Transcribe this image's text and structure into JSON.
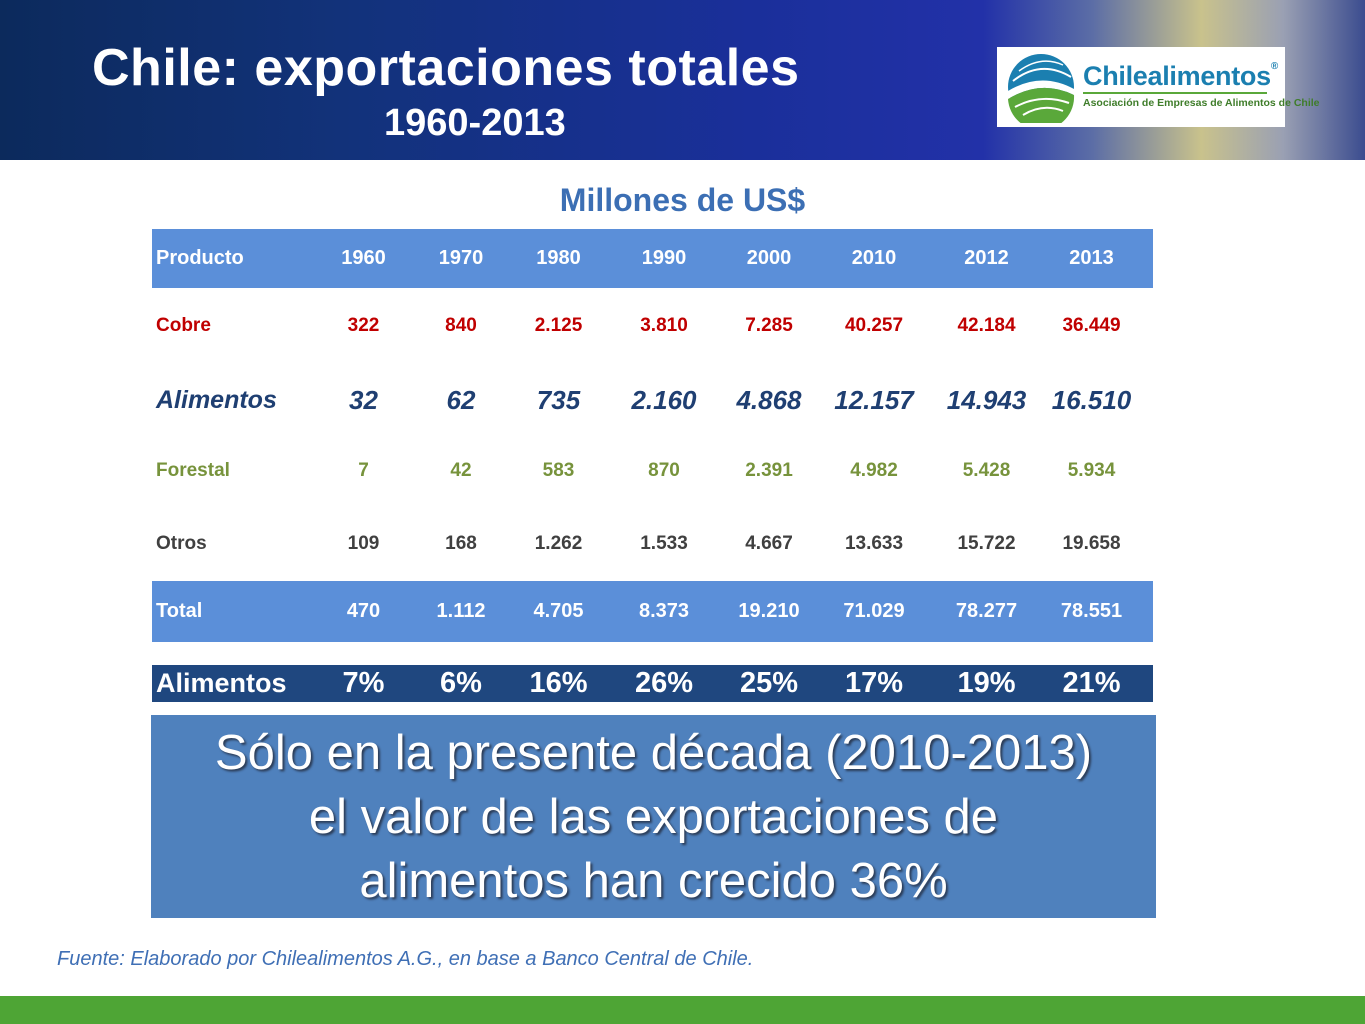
{
  "header": {
    "title": "Chile: exportaciones totales",
    "subtitle": "1960-2013"
  },
  "logo": {
    "name": "Chilealimentos",
    "registered": "®",
    "tagline": "Asociación de Empresas de Alimentos de Chile"
  },
  "units": "Millones de US$",
  "table": {
    "header": [
      "Producto",
      "1960",
      "1970",
      "1980",
      "1990",
      "2000",
      "2010",
      "2012",
      "2013"
    ],
    "cobre": [
      "Cobre",
      "322",
      "840",
      "2.125",
      "3.810",
      "7.285",
      "40.257",
      "42.184",
      "36.449"
    ],
    "alimentos": [
      "Alimentos",
      "32",
      "62",
      "735",
      "2.160",
      "4.868",
      "12.157",
      "14.943",
      "16.510"
    ],
    "forestal": [
      "Forestal",
      "7",
      "42",
      "583",
      "870",
      "2.391",
      "4.982",
      "5.428",
      "5.934"
    ],
    "otros": [
      "Otros",
      "109",
      "168",
      "1.262",
      "1.533",
      "4.667",
      "13.633",
      "15.722",
      "19.658"
    ],
    "total": [
      "Total",
      "470",
      "1.112",
      "4.705",
      "8.373",
      "19.210",
      "71.029",
      "78.277",
      "78.551"
    ],
    "share": [
      "Alimentos",
      "7%",
      "6%",
      "16%",
      "26%",
      "25%",
      "17%",
      "19%",
      "21%"
    ]
  },
  "note": {
    "line1": "Sólo en la presente década (2010-2013)",
    "line2": "el valor de las exportaciones de",
    "line3": "alimentos han crecido 36%"
  },
  "source": "Fuente: Elaborado por Chilealimentos A.G., en base a Banco Central de Chile.",
  "colors": {
    "header_blue": "#1a2f9a",
    "table_header": "#5b8fd9",
    "cobre": "#c00000",
    "alimentos": "#1f3f72",
    "forestal": "#77933c",
    "otros": "#404040",
    "share_row": "#1f477f",
    "note_box": "#4f81bd",
    "footer_green": "#4ea535"
  }
}
